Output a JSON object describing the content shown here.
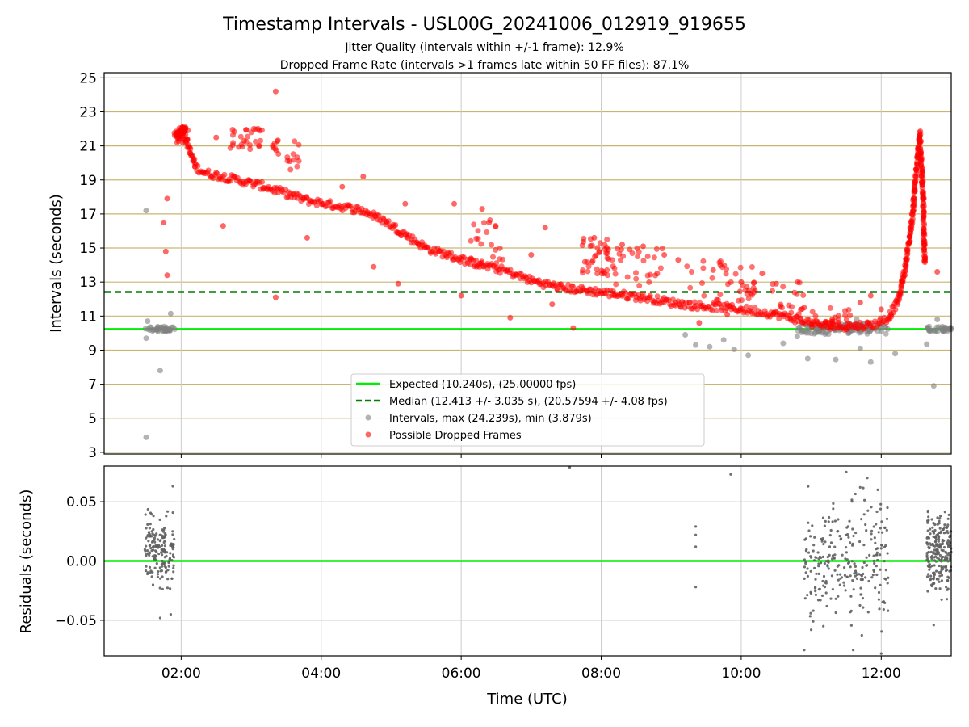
{
  "chart_data": [
    {
      "type": "scatter",
      "title": "Timestamp Intervals - USL00G_20241006_012919_919655",
      "subtitle_1": "Jitter Quality (intervals within +/-1 frame): 12.9%",
      "subtitle_2": "Dropped Frame Rate (intervals >1 frames late within 50 FF files): 87.1%",
      "xlabel": "",
      "ylabel": "Intervals (seconds)",
      "x_unit": "hours UTC",
      "xlim": [
        0.9,
        13.0
      ],
      "ylim": [
        2.9,
        25.3
      ],
      "y_ticks": [
        "3",
        "5",
        "7",
        "9",
        "11",
        "13",
        "15",
        "17",
        "19",
        "21",
        "23",
        "25"
      ],
      "x_ticks": [
        "02:00",
        "04:00",
        "06:00",
        "08:00",
        "10:00",
        "12:00"
      ],
      "hlines": [
        {
          "name": "Expected (10.240s), (25.00000 fps)",
          "y": 10.24,
          "color": "#00ee00",
          "style": "solid"
        },
        {
          "name": "Median (12.413 +/- 3.035 s), (20.57594 +/- 4.08 fps)",
          "y": 12.413,
          "color": "#007f00",
          "style": "dashed"
        }
      ],
      "series": [
        {
          "name": "Intervals, max (24.239s), min (3.879s)",
          "color": "#808080",
          "points": [
            [
              1.5,
              3.88
            ],
            [
              1.5,
              17.2
            ],
            [
              1.5,
              9.7
            ],
            [
              1.52,
              10.7
            ],
            [
              1.7,
              7.8
            ],
            [
              1.85,
              11.15
            ],
            [
              9.35,
              9.3
            ],
            [
              9.55,
              9.2
            ],
            [
              9.75,
              9.6
            ],
            [
              9.9,
              9.05
            ],
            [
              10.1,
              8.7
            ],
            [
              10.6,
              9.4
            ],
            [
              10.95,
              8.5
            ],
            [
              11.35,
              8.45
            ],
            [
              11.7,
              9.1
            ],
            [
              11.85,
              8.3
            ],
            [
              12.2,
              8.8
            ],
            [
              12.65,
              9.35
            ],
            [
              12.75,
              6.9
            ],
            [
              12.8,
              10.8
            ],
            [
              11.5,
              10.5
            ],
            [
              11.65,
              10.8
            ],
            [
              10.8,
              9.8
            ],
            [
              9.2,
              9.9
            ]
          ],
          "dense_bands": [
            {
              "x_from": 1.48,
              "x_to": 1.92,
              "y": 10.24,
              "spread": 0.15
            },
            {
              "x_from": 10.8,
              "x_to": 12.1,
              "y": 10.24,
              "spread": 0.3
            },
            {
              "x_from": 12.65,
              "x_to": 13.0,
              "y": 10.24,
              "spread": 0.15
            }
          ]
        },
        {
          "name": "Possible Dropped Frames",
          "color": "#ff0000",
          "trend": [
            [
              1.9,
              21.8
            ],
            [
              2.05,
              21.6
            ],
            [
              2.2,
              19.8
            ],
            [
              2.35,
              19.4
            ],
            [
              2.6,
              19.2
            ],
            [
              2.9,
              18.9
            ],
            [
              3.2,
              18.6
            ],
            [
              3.5,
              18.2
            ],
            [
              3.8,
              17.8
            ],
            [
              4.2,
              17.5
            ],
            [
              4.6,
              17.2
            ],
            [
              4.9,
              16.6
            ],
            [
              5.2,
              15.8
            ],
            [
              5.5,
              15.0
            ],
            [
              5.8,
              14.6
            ],
            [
              6.2,
              14.1
            ],
            [
              6.6,
              13.7
            ],
            [
              7.0,
              13.1
            ],
            [
              7.4,
              12.7
            ],
            [
              7.8,
              12.5
            ],
            [
              8.2,
              12.3
            ],
            [
              8.6,
              12.1
            ],
            [
              9.0,
              11.8
            ],
            [
              9.4,
              11.6
            ],
            [
              9.8,
              11.5
            ],
            [
              10.2,
              11.3
            ],
            [
              10.5,
              11.1
            ],
            [
              10.8,
              10.8
            ],
            [
              11.1,
              10.5
            ],
            [
              11.5,
              10.4
            ],
            [
              11.9,
              10.5
            ],
            [
              12.1,
              10.9
            ],
            [
              12.25,
              12.0
            ],
            [
              12.35,
              14.0
            ],
            [
              12.45,
              17.0
            ],
            [
              12.5,
              19.5
            ],
            [
              12.55,
              21.7
            ],
            [
              12.6,
              18.0
            ],
            [
              12.62,
              14.0
            ]
          ],
          "outliers": [
            [
              3.35,
              24.2
            ],
            [
              1.8,
              17.9
            ],
            [
              1.75,
              16.5
            ],
            [
              1.78,
              14.8
            ],
            [
              1.8,
              13.4
            ],
            [
              2.6,
              16.3
            ],
            [
              3.8,
              15.6
            ],
            [
              3.35,
              12.1
            ],
            [
              4.75,
              13.9
            ],
            [
              5.1,
              12.9
            ],
            [
              5.9,
              17.6
            ],
            [
              6.0,
              12.2
            ],
            [
              6.3,
              17.3
            ],
            [
              6.7,
              10.9
            ],
            [
              7.2,
              16.2
            ],
            [
              7.6,
              10.3
            ],
            [
              7.3,
              11.7
            ],
            [
              8.3,
              15.2
            ],
            [
              8.6,
              15.1
            ],
            [
              8.9,
              14.6
            ],
            [
              9.1,
              14.3
            ],
            [
              9.4,
              10.6
            ],
            [
              9.8,
              11.1
            ],
            [
              10.3,
              13.5
            ],
            [
              10.5,
              12.9
            ],
            [
              11.0,
              10.5
            ],
            [
              11.3,
              10.8
            ],
            [
              11.7,
              11.8
            ],
            [
              11.85,
              12.2
            ],
            [
              12.0,
              11.4
            ],
            [
              12.8,
              13.6
            ],
            [
              4.3,
              18.6
            ],
            [
              4.6,
              19.2
            ],
            [
              5.2,
              17.6
            ],
            [
              3.55,
              20.1
            ],
            [
              2.9,
              21.3
            ],
            [
              3.1,
              22.0
            ],
            [
              2.5,
              21.5
            ],
            [
              6.4,
              16.5
            ],
            [
              7.0,
              14.6
            ],
            [
              7.9,
              15.6
            ],
            [
              8.1,
              14.9
            ],
            [
              8.8,
              13.5
            ],
            [
              9.6,
              13.7
            ],
            [
              10.0,
              13.0
            ],
            [
              10.9,
              11.5
            ]
          ],
          "clusters": [
            {
              "x_from": 1.93,
              "x_to": 2.1,
              "y_from": 21.2,
              "y_to": 22.1,
              "count": 40
            },
            {
              "x_from": 2.7,
              "x_to": 3.2,
              "y_from": 20.8,
              "y_to": 22.0,
              "count": 25
            },
            {
              "x_from": 3.3,
              "x_to": 3.7,
              "y_from": 19.5,
              "y_to": 21.4,
              "count": 18
            },
            {
              "x_from": 6.1,
              "x_to": 6.6,
              "y_from": 14.0,
              "y_to": 17.0,
              "count": 22
            },
            {
              "x_from": 7.7,
              "x_to": 8.1,
              "y_from": 13.4,
              "y_to": 15.6,
              "count": 35
            },
            {
              "x_from": 8.1,
              "x_to": 8.9,
              "y_from": 12.6,
              "y_to": 15.0,
              "count": 30
            },
            {
              "x_from": 9.2,
              "x_to": 10.2,
              "y_from": 11.6,
              "y_to": 14.3,
              "count": 40
            },
            {
              "x_from": 10.4,
              "x_to": 10.9,
              "y_from": 11.0,
              "y_to": 13.2,
              "count": 18
            },
            {
              "x_from": 11.0,
              "x_to": 11.6,
              "y_from": 10.2,
              "y_to": 11.5,
              "count": 20
            }
          ]
        }
      ],
      "legend": {
        "placement": "bottom-center"
      },
      "grid": true
    },
    {
      "type": "scatter",
      "xlabel": "Time (UTC)",
      "ylabel": "Residuals (seconds)",
      "xlim": [
        0.9,
        13.0
      ],
      "ylim": [
        -0.08,
        0.08
      ],
      "y_ticks": [
        "−0.05",
        "0.00",
        "0.05"
      ],
      "x_ticks": [
        "02:00",
        "04:00",
        "06:00",
        "08:00",
        "10:00",
        "12:00"
      ],
      "zero_line_color": "#00ee00",
      "grid": true,
      "series": [
        {
          "color": "#606060",
          "points": [
            [
              7.55,
              0.079
            ],
            [
              9.85,
              0.073
            ],
            [
              9.35,
              0.029
            ],
            [
              9.35,
              0.022
            ],
            [
              9.35,
              0.012
            ],
            [
              9.35,
              -0.022
            ],
            [
              1.7,
              -0.048
            ],
            [
              1.85,
              -0.045
            ],
            [
              1.88,
              0.063
            ],
            [
              12.75,
              -0.054
            ],
            [
              11.6,
              -0.075
            ],
            [
              11.7,
              0.062
            ],
            [
              11.8,
              0.07
            ],
            [
              11.95,
              0.06
            ],
            [
              12.0,
              -0.078
            ],
            [
              10.9,
              -0.075
            ],
            [
              11.0,
              -0.058
            ],
            [
              11.5,
              0.075
            ]
          ],
          "clusters": [
            {
              "x_from": 1.48,
              "x_to": 1.9,
              "y_from": -0.035,
              "y_to": 0.052,
              "count": 170
            },
            {
              "x_from": 10.9,
              "x_to": 12.1,
              "y_from": -0.07,
              "y_to": 0.07,
              "count": 260
            },
            {
              "x_from": 12.65,
              "x_to": 13.0,
              "y_from": -0.04,
              "y_to": 0.055,
              "count": 220
            }
          ]
        }
      ]
    }
  ]
}
